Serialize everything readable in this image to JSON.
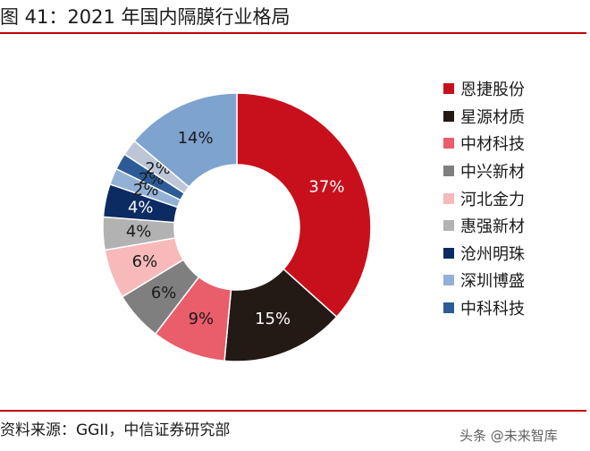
{
  "title": "图 41：2021 年国内隔膜行业格局",
  "source": "资料来源：GGII，中信证券研究部",
  "watermark": "头条 @未来智库",
  "chart_data": {
    "type": "pie",
    "donut": true,
    "legend_position": "right",
    "slices": [
      {
        "label": "恩捷股份",
        "value": 37,
        "display": "37%",
        "color": "#c8101d",
        "text_color": "#ffffff"
      },
      {
        "label": "星源材质",
        "value": 15,
        "display": "15%",
        "color": "#231915",
        "text_color": "#ffffff"
      },
      {
        "label": "中材科技",
        "value": 9,
        "display": "9%",
        "color": "#ea5d6a",
        "text_color": "#1a1a1a"
      },
      {
        "label": "中兴新材",
        "value": 6,
        "display": "6%",
        "color": "#7f7f7f",
        "text_color": "#1a1a1a"
      },
      {
        "label": "河北金力",
        "value": 6,
        "display": "6%",
        "color": "#f7b9b9",
        "text_color": "#1a1a1a"
      },
      {
        "label": "惠强新材",
        "value": 4,
        "display": "4%",
        "color": "#b2b2b2",
        "text_color": "#1a1a1a"
      },
      {
        "label": "沧州明珠",
        "value": 4,
        "display": "4%",
        "color": "#0c2b63",
        "text_color": "#ffffff"
      },
      {
        "label": "深圳博盛",
        "value": 2,
        "display": "2%",
        "color": "#93b1d6",
        "text_color": "#1a1a1a"
      },
      {
        "label": "中科科技",
        "value": 2,
        "display": "2%",
        "color": "#2c5b97",
        "text_color": "#1a1a1a"
      },
      {
        "label": "",
        "value": 2,
        "display": "2%",
        "color": "#bcc6d7",
        "text_color": "#1a1a1a"
      },
      {
        "label": "",
        "value": 14,
        "display": "14%",
        "color": "#7ea3cf",
        "text_color": "#1a1a1a"
      }
    ]
  }
}
